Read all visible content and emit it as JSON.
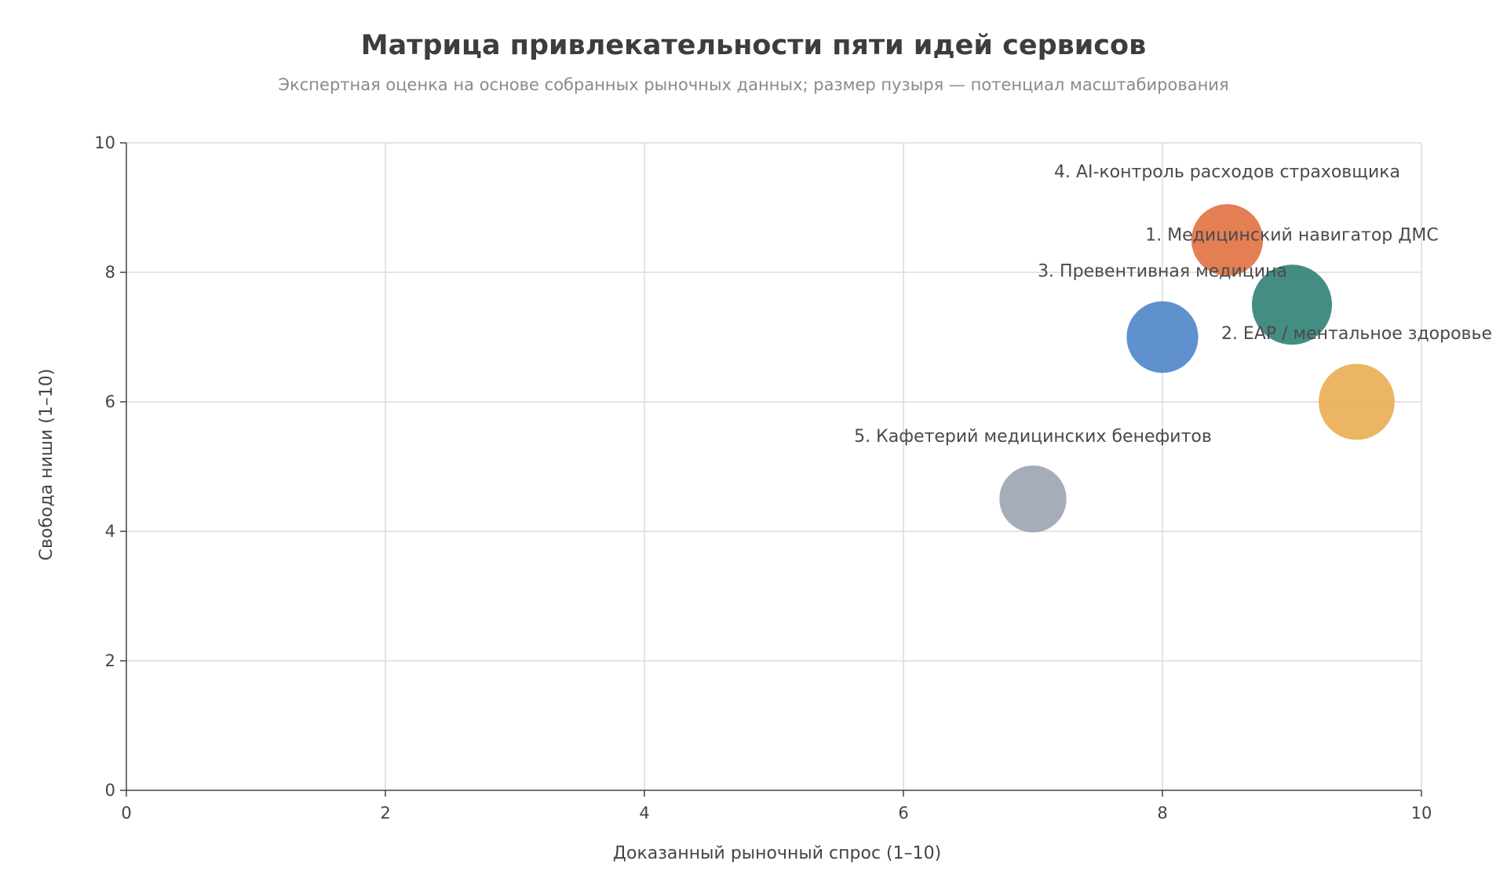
{
  "chart_data": {
    "type": "scatter",
    "title": "Матрица привлекательности пяти идей сервисов",
    "subtitle": "Экспертная оценка на основе собранных рыночных данных; размер пузыря — потенциал масштабирования",
    "xlabel": "Доказанный рыночный спрос (1–10)",
    "ylabel": "Свобода ниши (1–10)",
    "xlim": [
      0,
      10
    ],
    "ylim": [
      0,
      10
    ],
    "xticks": [
      0,
      2,
      4,
      6,
      8,
      10
    ],
    "yticks": [
      0,
      2,
      4,
      6,
      8,
      10
    ],
    "grid": true,
    "points": [
      {
        "label": "1. Медицинский навигатор ДМС",
        "x": 9.0,
        "y": 7.5,
        "size": 10,
        "color": "#2a7d72"
      },
      {
        "label": "2. EAP / ментальное здоровье",
        "x": 9.5,
        "y": 6.0,
        "size": 9,
        "color": "#e8ab4f"
      },
      {
        "label": "3. Превентивная медицина",
        "x": 8.0,
        "y": 7.0,
        "size": 8,
        "color": "#4a82c8"
      },
      {
        "label": "4. AI-контроль расходов страховщика",
        "x": 8.5,
        "y": 8.5,
        "size": 8,
        "color": "#e06d3c"
      },
      {
        "label": "5. Кафетерий медицинских бенефитов",
        "x": 7.0,
        "y": 4.5,
        "size": 7,
        "color": "#9aa1b1"
      }
    ]
  }
}
